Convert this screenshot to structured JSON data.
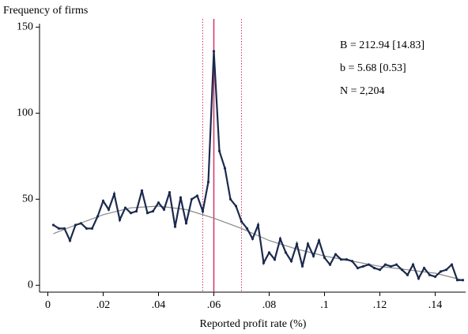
{
  "chart_data": {
    "type": "line",
    "y_label": "Frequency of firms",
    "x_label": "Reported profit rate (%)",
    "annotations": [
      "B = 212.94 [14.83]",
      "b = 5.68 [0.53]",
      "N =  2,204"
    ],
    "xlim": [
      -0.003,
      0.151
    ],
    "ylim": [
      -4,
      152
    ],
    "xticks": [
      {
        "value": 0,
        "label": "0"
      },
      {
        "value": 0.02,
        "label": ".02"
      },
      {
        "value": 0.04,
        "label": ".04"
      },
      {
        "value": 0.06,
        "label": ".06"
      },
      {
        "value": 0.08,
        "label": ".08"
      },
      {
        "value": 0.1,
        "label": ".1"
      },
      {
        "value": 0.12,
        "label": ".12"
      },
      {
        "value": 0.14,
        "label": ".14"
      }
    ],
    "yticks": [
      0,
      50,
      100,
      150
    ],
    "vlines": [
      {
        "x": 0.06,
        "color": "#d6336c",
        "style": "solid"
      },
      {
        "x": 0.056,
        "color": "#d6336c",
        "style": "dotted"
      },
      {
        "x": 0.07,
        "color": "#d6336c",
        "style": "dotted"
      }
    ],
    "series": [
      {
        "color": "#1b2a4e",
        "markers": true,
        "x": [
          0.002,
          0.004,
          0.006,
          0.008,
          0.01,
          0.012,
          0.014,
          0.016,
          0.018,
          0.02,
          0.022,
          0.024,
          0.026,
          0.028,
          0.03,
          0.032,
          0.034,
          0.036,
          0.038,
          0.04,
          0.042,
          0.044,
          0.046,
          0.048,
          0.05,
          0.052,
          0.054,
          0.056,
          0.058,
          0.06,
          0.062,
          0.064,
          0.066,
          0.068,
          0.07,
          0.072,
          0.074,
          0.076,
          0.078,
          0.08,
          0.082,
          0.084,
          0.086,
          0.088,
          0.09,
          0.092,
          0.094,
          0.096,
          0.098,
          0.1,
          0.102,
          0.104,
          0.106,
          0.108,
          0.11,
          0.112,
          0.114,
          0.116,
          0.118,
          0.12,
          0.122,
          0.124,
          0.126,
          0.128,
          0.13,
          0.132,
          0.134,
          0.136,
          0.138,
          0.14,
          0.142,
          0.144,
          0.146,
          0.148,
          0.15
        ],
        "values": [
          35,
          33,
          33,
          26,
          35,
          36,
          33,
          33,
          40,
          49,
          44,
          53,
          38,
          45,
          42,
          43,
          55,
          42,
          43,
          48,
          44,
          54,
          34,
          51,
          36,
          50,
          52,
          43,
          60,
          136,
          78,
          68,
          50,
          46,
          37,
          33,
          27,
          35,
          13,
          19,
          15,
          27,
          19,
          14,
          24,
          11,
          24,
          17,
          26,
          16,
          12,
          18,
          15,
          15,
          14,
          10,
          11,
          12,
          10,
          9,
          12,
          11,
          12,
          9,
          6,
          12,
          4,
          10,
          6,
          5,
          8,
          9,
          12,
          3,
          3
        ]
      },
      {
        "color": "#888888",
        "markers": false,
        "x": [
          0.002,
          0.01,
          0.02,
          0.03,
          0.04,
          0.05,
          0.06,
          0.07,
          0.08,
          0.09,
          0.1,
          0.11,
          0.12,
          0.13,
          0.14,
          0.15
        ],
        "values": [
          30,
          35,
          41,
          45,
          46,
          44,
          39,
          33,
          26,
          21,
          17,
          14,
          11,
          9,
          7,
          3
        ]
      }
    ]
  }
}
